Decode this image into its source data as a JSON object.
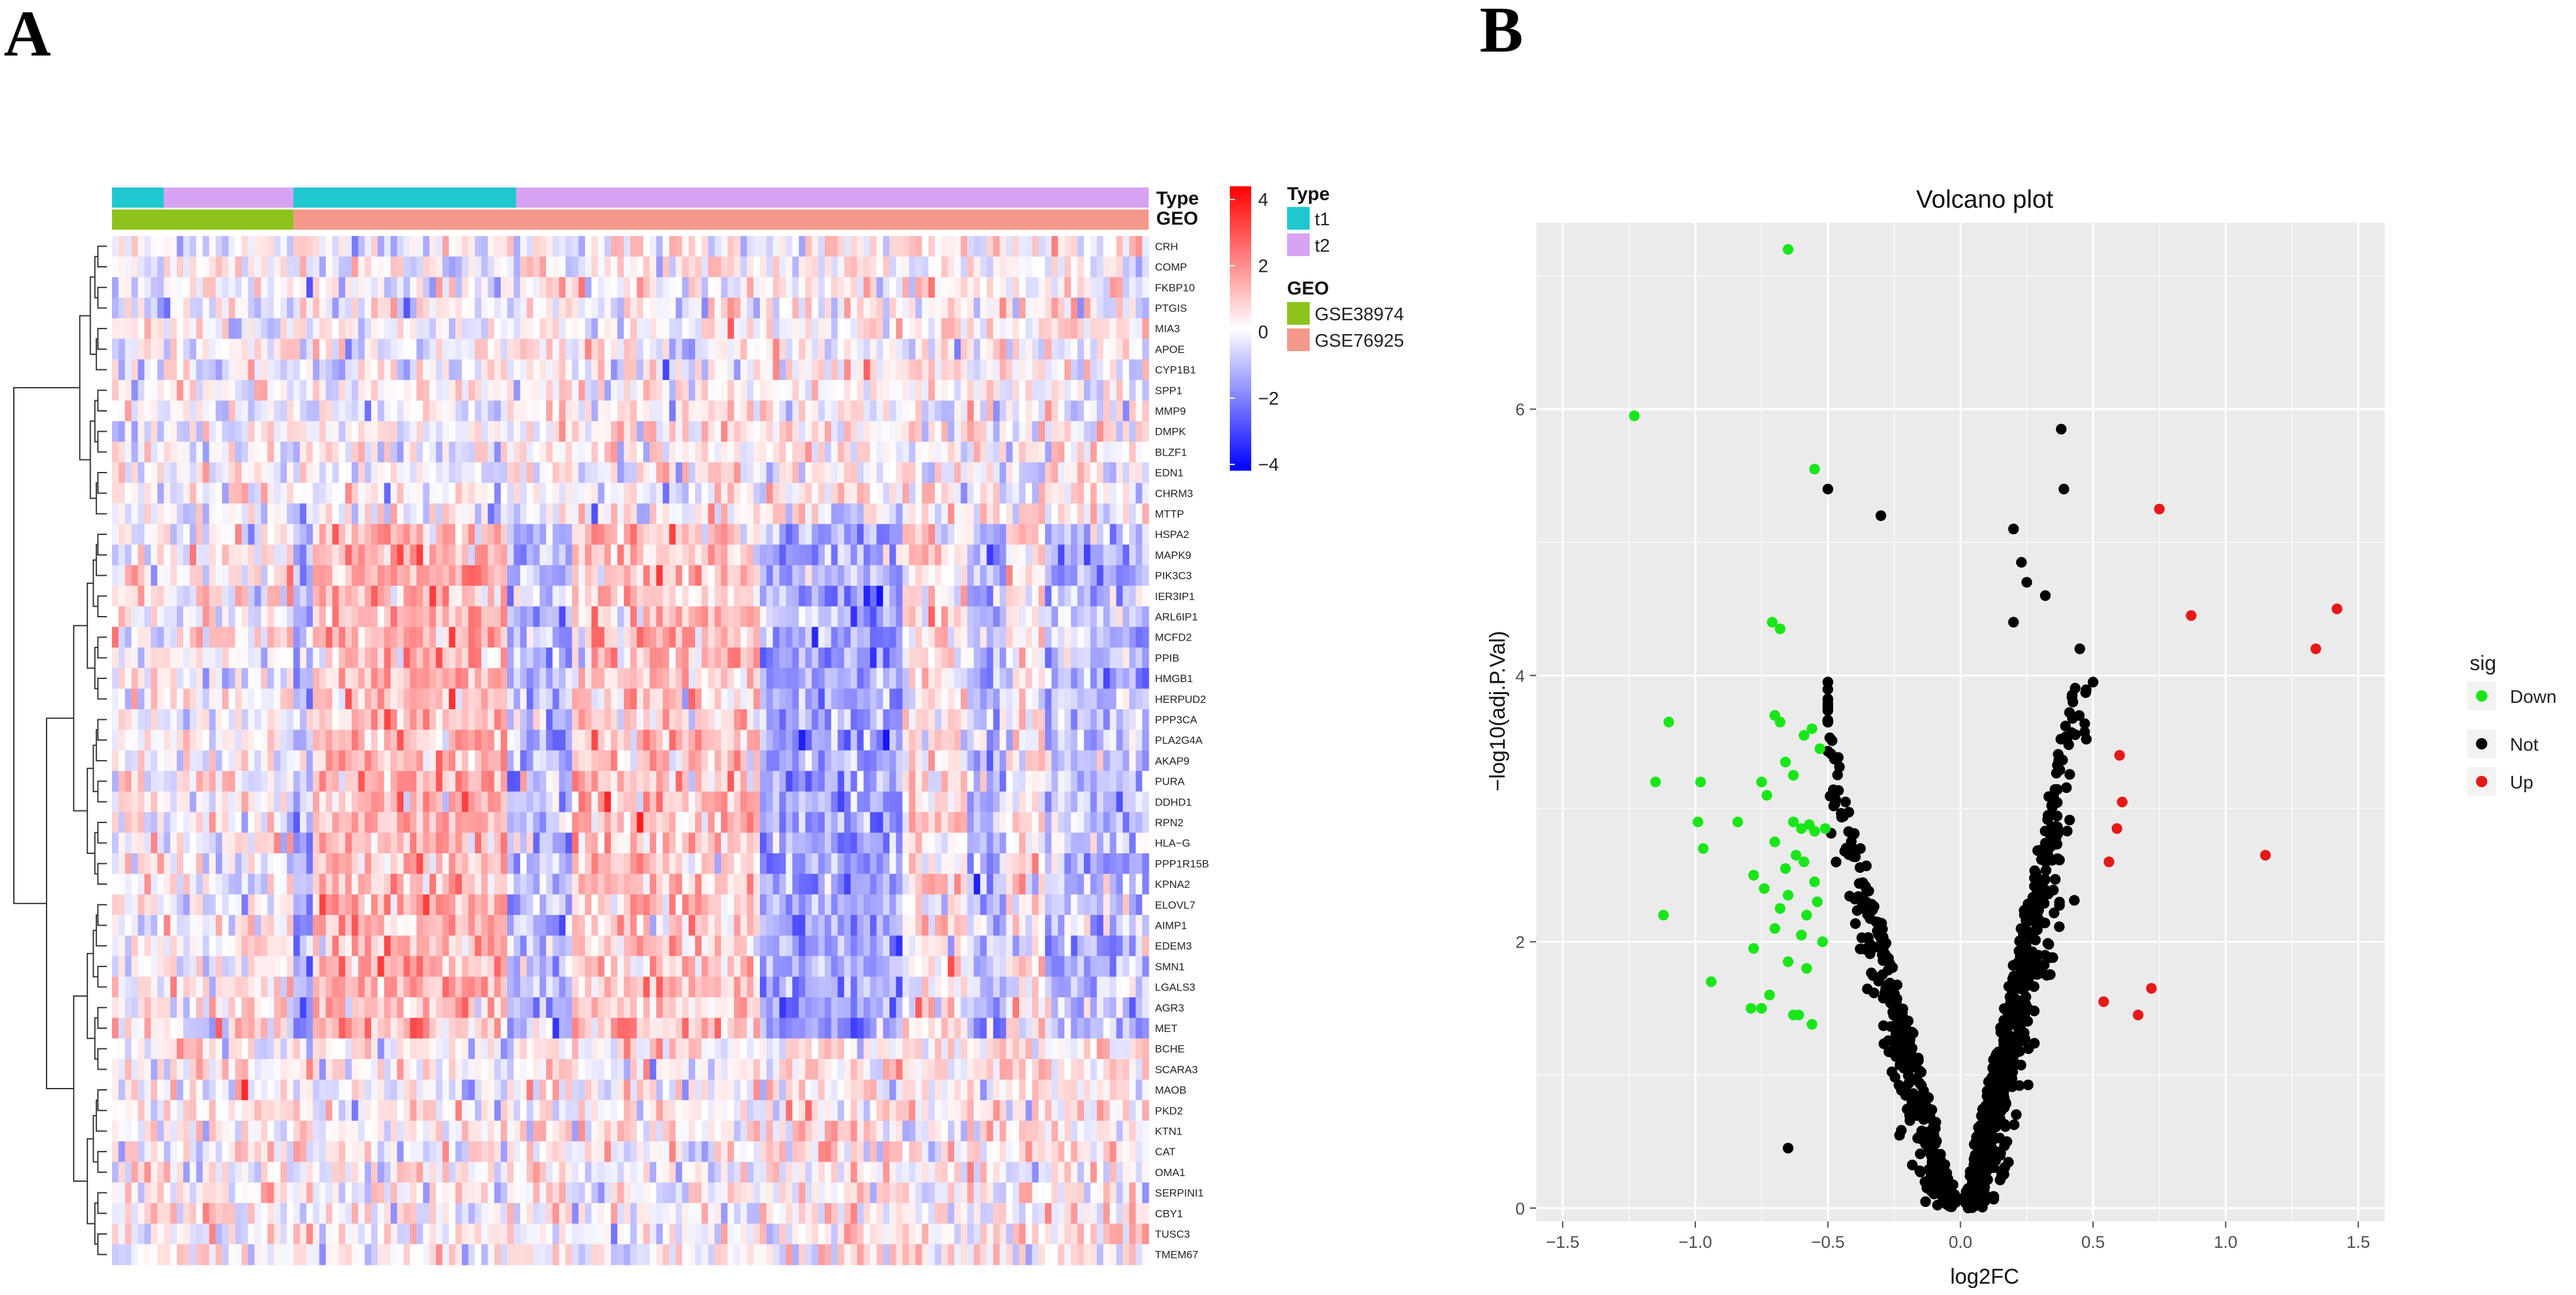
{
  "panel_a": {
    "letter": "A"
  },
  "panel_b": {
    "letter": "B"
  },
  "chart_data": [
    {
      "type": "heatmap",
      "title": "",
      "annotation_rows": [
        "Type",
        "GEO"
      ],
      "annotation_legend": {
        "type": {
          "title": "Type",
          "entries": [
            {
              "label": "t1",
              "color": "#1fc8cf"
            },
            {
              "label": "t2",
              "color": "#d8a2f2"
            }
          ]
        },
        "geo": {
          "title": "GEO",
          "entries": [
            {
              "label": "GSE38974",
              "color": "#8cc21c"
            },
            {
              "label": "GSE76925",
              "color": "#f4998a"
            }
          ]
        }
      },
      "annotation_segments": {
        "type": [
          {
            "from": 0,
            "to": 0.05,
            "group": "t1"
          },
          {
            "from": 0.05,
            "to": 0.175,
            "group": "t2"
          },
          {
            "from": 0.175,
            "to": 0.39,
            "group": "t1"
          },
          {
            "from": 0.39,
            "to": 1,
            "group": "t2"
          }
        ],
        "geo": [
          {
            "from": 0,
            "to": 0.175,
            "group": "GSE38974"
          },
          {
            "from": 0.175,
            "to": 1,
            "group": "GSE76925"
          }
        ]
      },
      "color_scale": {
        "min": -4,
        "max": 4,
        "low": "#0000ff",
        "mid": "#ffffff",
        "high": "#ff0000",
        "ticks": [
          "4",
          "2",
          "0",
          "−2",
          "−4"
        ]
      },
      "genes": [
        "CRH",
        "COMP",
        "FKBP10",
        "PTGIS",
        "MIA3",
        "APOE",
        "CYP1B1",
        "SPP1",
        "MMP9",
        "DMPK",
        "BLZF1",
        "EDN1",
        "CHRM3",
        "MTTP",
        "HSPA2",
        "MAPK9",
        "PIK3C3",
        "IER3IP1",
        "ARL6IP1",
        "MCFD2",
        "PPIB",
        "HMGB1",
        "HERPUD2",
        "PPP3CA",
        "PLA2G4A",
        "AKAP9",
        "PURA",
        "DDHD1",
        "RPN2",
        "HLA−G",
        "PPP1R15B",
        "KPNA2",
        "ELOVL7",
        "AIMP1",
        "EDEM3",
        "SMN1",
        "LGALS3",
        "AGR3",
        "MET",
        "BCHE",
        "SCARA3",
        "MAOB",
        "PKD2",
        "KTN1",
        "CAT",
        "OMA1",
        "SERPINI1",
        "CBY1",
        "TUSC3",
        "TMEM67"
      ],
      "num_samples": 160
    },
    {
      "type": "scatter",
      "title": "Volcano plot",
      "xlabel": "log2FC",
      "ylabel": "−log10(adj.P.Val)",
      "xlim": [
        -1.6,
        1.6
      ],
      "ylim": [
        -0.1,
        7.4
      ],
      "xticks": [
        -1.5,
        -1.0,
        -0.5,
        0.0,
        0.5,
        1.0,
        1.5
      ],
      "xtick_labels": [
        "−1.5",
        "−1.0",
        "−0.5",
        "0.0",
        "0.5",
        "1.0",
        "1.5"
      ],
      "yticks": [
        0,
        2,
        4,
        6
      ],
      "ytick_labels": [
        "0",
        "2",
        "4",
        "6"
      ],
      "legend": {
        "title": "sig",
        "position": "right",
        "entries": [
          {
            "label": "Down",
            "color": "#19e619"
          },
          {
            "label": "Not",
            "color": "#000000"
          },
          {
            "label": "Up",
            "color": "#e61919"
          }
        ]
      },
      "series": [
        {
          "name": "Up",
          "color": "#e61919",
          "points": [
            [
              0.75,
              5.25
            ],
            [
              1.42,
              4.5
            ],
            [
              0.87,
              4.45
            ],
            [
              1.34,
              4.2
            ],
            [
              0.6,
              3.4
            ],
            [
              0.61,
              3.05
            ],
            [
              0.59,
              2.85
            ],
            [
              0.56,
              2.6
            ],
            [
              1.15,
              2.65
            ],
            [
              0.72,
              1.65
            ],
            [
              0.54,
              1.55
            ],
            [
              0.67,
              1.45
            ]
          ]
        },
        {
          "name": "Down",
          "color": "#19e619",
          "points": [
            [
              -0.65,
              7.2
            ],
            [
              -1.23,
              5.95
            ],
            [
              -0.55,
              5.55
            ],
            [
              -0.71,
              4.4
            ],
            [
              -0.68,
              4.35
            ],
            [
              -1.1,
              3.65
            ],
            [
              -0.7,
              3.7
            ],
            [
              -0.68,
              3.65
            ],
            [
              -0.56,
              3.6
            ],
            [
              -0.59,
              3.55
            ],
            [
              -0.53,
              3.45
            ],
            [
              -0.66,
              3.35
            ],
            [
              -0.63,
              3.25
            ],
            [
              -1.15,
              3.2
            ],
            [
              -0.98,
              3.2
            ],
            [
              -0.75,
              3.2
            ],
            [
              -0.73,
              3.1
            ],
            [
              -0.99,
              2.9
            ],
            [
              -0.84,
              2.9
            ],
            [
              -0.63,
              2.9
            ],
            [
              -0.6,
              2.85
            ],
            [
              -0.57,
              2.88
            ],
            [
              -0.55,
              2.83
            ],
            [
              -0.51,
              2.85
            ],
            [
              -0.7,
              2.75
            ],
            [
              -0.97,
              2.7
            ],
            [
              -0.62,
              2.65
            ],
            [
              -0.59,
              2.6
            ],
            [
              -0.66,
              2.55
            ],
            [
              -0.78,
              2.5
            ],
            [
              -0.55,
              2.45
            ],
            [
              -0.74,
              2.4
            ],
            [
              -0.65,
              2.35
            ],
            [
              -0.54,
              2.3
            ],
            [
              -0.68,
              2.25
            ],
            [
              -0.58,
              2.2
            ],
            [
              -1.12,
              2.2
            ],
            [
              -0.7,
              2.1
            ],
            [
              -0.6,
              2.05
            ],
            [
              -0.52,
              2.0
            ],
            [
              -0.78,
              1.95
            ],
            [
              -0.65,
              1.85
            ],
            [
              -0.58,
              1.8
            ],
            [
              -0.94,
              1.7
            ],
            [
              -0.72,
              1.6
            ],
            [
              -0.79,
              1.5
            ],
            [
              -0.75,
              1.5
            ],
            [
              -0.63,
              1.45
            ],
            [
              -0.61,
              1.45
            ],
            [
              -0.56,
              1.38
            ]
          ]
        },
        {
          "name": "Not",
          "color": "#000000",
          "generated": true,
          "count": 900,
          "highlights": [
            [
              0.38,
              5.85
            ],
            [
              -0.5,
              5.4
            ],
            [
              0.39,
              5.4
            ],
            [
              -0.3,
              5.2
            ],
            [
              0.2,
              5.1
            ],
            [
              0.32,
              4.6
            ],
            [
              0.23,
              4.85
            ],
            [
              0.25,
              4.7
            ],
            [
              0.2,
              4.4
            ],
            [
              0.45,
              4.2
            ],
            [
              -0.5,
              3.95
            ],
            [
              -0.65,
              0.45
            ]
          ]
        }
      ]
    }
  ]
}
